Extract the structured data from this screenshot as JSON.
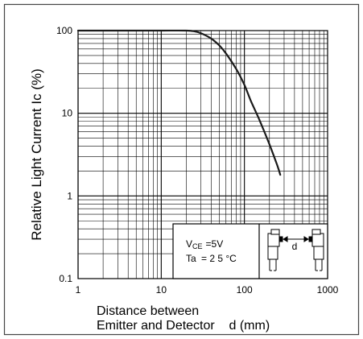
{
  "chart_data": {
    "type": "line",
    "x_scale": "log",
    "y_scale": "log",
    "xlim": [
      1,
      1000
    ],
    "ylim": [
      0.1,
      100
    ],
    "x_ticks": [
      "1",
      "10",
      "100",
      "1000"
    ],
    "y_ticks": [
      "0.1",
      "1",
      "10",
      "100"
    ],
    "ylabel": "Relative Light Current  Ic (%)",
    "xlabel_line1": "Distance between",
    "xlabel_line2": "Emitter and Detector    d (mm)",
    "grid": true,
    "series": [
      {
        "x": [
          1,
          5,
          10,
          20,
          25,
          30,
          40,
          50,
          60,
          80,
          100,
          120,
          150,
          200,
          250,
          270
        ],
        "y": [
          100,
          100,
          100,
          100,
          98,
          93,
          80,
          66,
          53,
          34,
          22,
          14,
          8.5,
          4.2,
          2.3,
          1.8
        ]
      }
    ],
    "conditions": {
      "vce_label": "V",
      "vce_sub": "CE",
      "vce_value": "=5V",
      "ta_label": "Ta",
      "ta_value": "= 2 5 °C",
      "diagram_label": "d"
    },
    "colors": {
      "line": "#1a1a1a",
      "grid": "#000000",
      "frame": "#333333"
    }
  }
}
